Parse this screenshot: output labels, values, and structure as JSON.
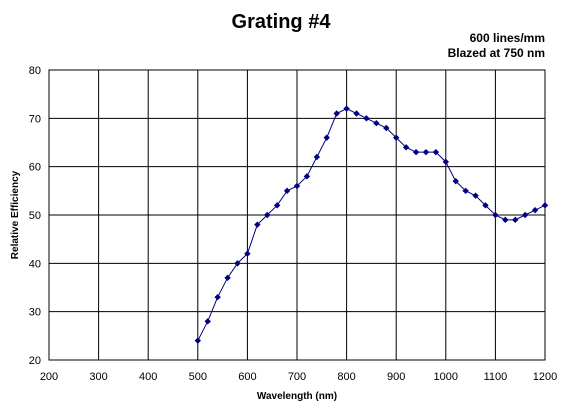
{
  "chart_data": {
    "type": "scatter",
    "title": "Grating #4",
    "subtitle_lines": [
      "600 lines/mm",
      "Blazed at 750 nm"
    ],
    "xlabel": "Wavelength (nm)",
    "ylabel": "Relative Efficiency",
    "xlim": [
      200,
      1200
    ],
    "ylim": [
      20,
      80
    ],
    "xticks": [
      200,
      300,
      400,
      500,
      600,
      700,
      800,
      900,
      1000,
      1100,
      1200
    ],
    "yticks": [
      20,
      30,
      40,
      50,
      60,
      70,
      80
    ],
    "grid": true,
    "legend": "none",
    "colors": {
      "series": "#000080",
      "grid": "#000000",
      "text": "#000000"
    },
    "series": [
      {
        "x": [
          500,
          520,
          540,
          560,
          580,
          600,
          620,
          640,
          660,
          680,
          700,
          720,
          740,
          760,
          780,
          800,
          820,
          840,
          860,
          880,
          900,
          920,
          940,
          960,
          980,
          1000,
          1020,
          1040,
          1060,
          1080,
          1100,
          1120,
          1140,
          1160,
          1180,
          1200
        ],
        "y": [
          24,
          28,
          33,
          37,
          40,
          42,
          48,
          50,
          52,
          55,
          56,
          58,
          62,
          66,
          71,
          72,
          71,
          70,
          69,
          68,
          66,
          64,
          63,
          63,
          63,
          61,
          57,
          55,
          54,
          52,
          50,
          49,
          49,
          50,
          51,
          52
        ]
      }
    ]
  }
}
